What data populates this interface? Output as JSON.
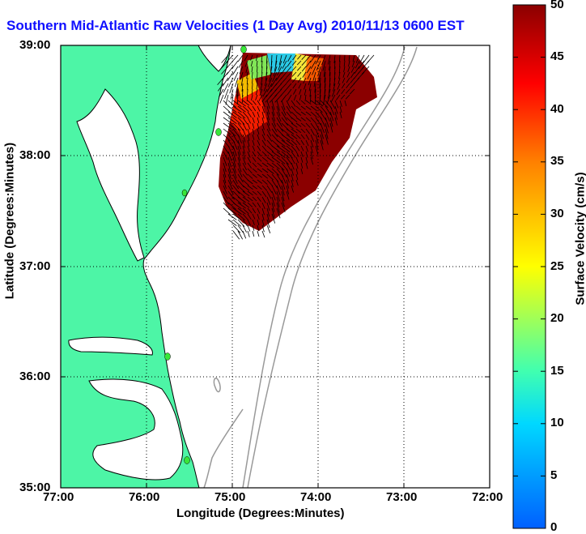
{
  "title": "Southern Mid-Atlantic Raw Velocities (1 Day Avg) 2010/11/13 0600 EST",
  "xlabel": "Longitude (Degrees:Minutes)",
  "ylabel": "Latitude (Degrees:Minutes)",
  "colorbar": {
    "label": "Surface Velocity (cm/s)",
    "min": 0,
    "max": 50,
    "ticks": [
      "0",
      "5",
      "10",
      "15",
      "20",
      "25",
      "30",
      "35",
      "40",
      "45",
      "50"
    ],
    "colors": [
      "#0060ff",
      "#00d8ff",
      "#40ffb0",
      "#ffff00",
      "#ff8000",
      "#ff0000",
      "#8b0000"
    ]
  },
  "x_ticks": [
    "77:00",
    "76:00",
    "75:00",
    "74:00",
    "73:00",
    "72:00"
  ],
  "y_ticks": [
    "39:00",
    "38:00",
    "37:00",
    "36:00",
    "35:00"
  ],
  "colors": {
    "land": "#4df5a6",
    "coast": "#000000",
    "bathymetry": "#999999",
    "station": "#39e639",
    "title": "#1010ff"
  },
  "map": {
    "lon_range": [
      -77,
      -72
    ],
    "lat_range": [
      35,
      39
    ],
    "grid": "dotted"
  }
}
